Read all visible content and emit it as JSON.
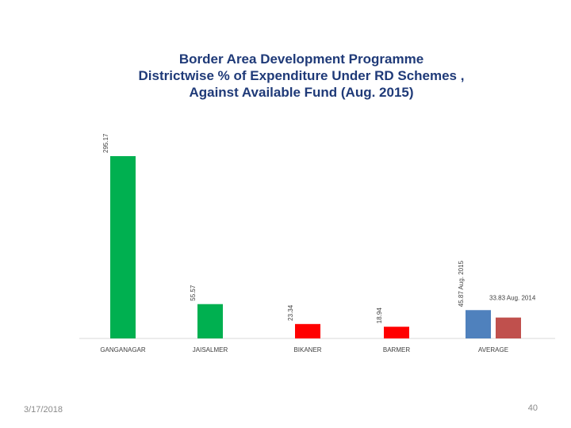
{
  "slide": {
    "title_lines": [
      "Border Area Development Programme",
      "Districtwise % of Expenditure Under RD Schemes ,",
      "Against Available Fund (Aug. 2015)"
    ],
    "date": "3/17/2018",
    "page_number": "40"
  },
  "chart_data": {
    "type": "bar",
    "title": "Border Area Development Programme Districtwise % of Expenditure Under RD Schemes , Against Available Fund (Aug. 2015)",
    "xlabel": "",
    "ylabel": "",
    "ylim": [
      0,
      300
    ],
    "grid": false,
    "categories": [
      "GANGANAGAR",
      "JAISALMER",
      "BIKANER",
      "BARMER",
      "AVERAGE"
    ],
    "bars": [
      {
        "category": "GANGANAGAR",
        "value": 295.17,
        "label": "295.17",
        "color": "#00b050"
      },
      {
        "category": "JAISALMER",
        "value": 55.57,
        "label": "55.57",
        "color": "#00b050"
      },
      {
        "category": "BIKANER",
        "value": 23.34,
        "label": "23.34",
        "color": "#ff0000"
      },
      {
        "category": "BARMER",
        "value": 18.94,
        "label": "18.94",
        "color": "#ff0000"
      },
      {
        "category": "AVERAGE",
        "value": 45.87,
        "label": "45.87 Aug. 2015",
        "color": "#4f81bd"
      },
      {
        "category": "AVERAGE",
        "value": 33.83,
        "label": "33.83 Aug. 2014",
        "color": "#c0504d"
      }
    ]
  }
}
